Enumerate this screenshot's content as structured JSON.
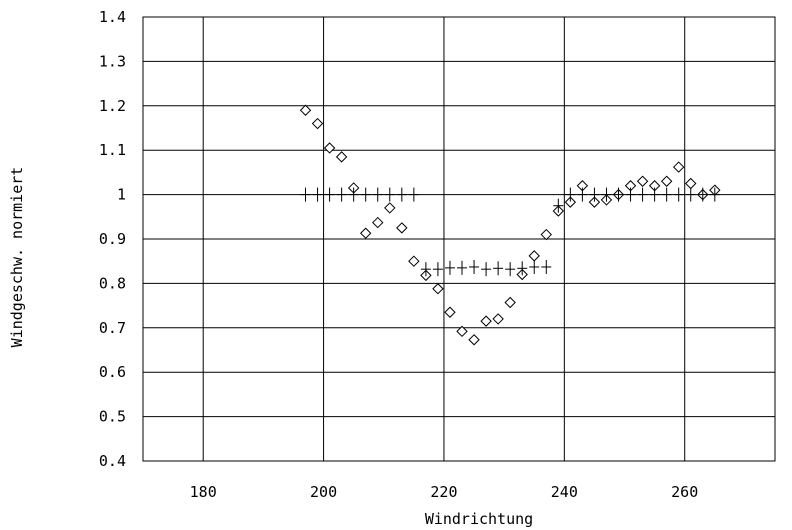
{
  "chart_data": {
    "type": "scatter",
    "title": "",
    "xlabel": "Windrichtung",
    "ylabel": "Windgeschw. normiert",
    "xlim": [
      170,
      275
    ],
    "ylim": [
      0.4,
      1.4
    ],
    "xticks": [
      180,
      200,
      220,
      240,
      260
    ],
    "xtick_labels": [
      "180",
      "200",
      "220",
      "240",
      "260"
    ],
    "yticks": [
      0.4,
      0.5,
      0.6,
      0.7,
      0.8,
      0.9,
      1.0,
      1.1,
      1.2,
      1.3,
      1.4
    ],
    "ytick_labels": [
      "0.4",
      "0.5",
      "0.6",
      "0.7",
      "0.8",
      "0.9",
      "1",
      "1.1",
      "1.2",
      "1.3",
      "1.4"
    ],
    "grid": true,
    "series": [
      {
        "marker": "diamond",
        "points": [
          [
            197,
            1.19
          ],
          [
            199,
            1.16
          ],
          [
            201,
            1.105
          ],
          [
            203,
            1.085
          ],
          [
            205,
            1.015
          ],
          [
            207,
            0.913
          ],
          [
            209,
            0.937
          ],
          [
            211,
            0.97
          ],
          [
            213,
            0.925
          ],
          [
            215,
            0.85
          ],
          [
            217,
            0.818
          ],
          [
            219,
            0.788
          ],
          [
            221,
            0.735
          ],
          [
            223,
            0.692
          ],
          [
            225,
            0.673
          ],
          [
            227,
            0.715
          ],
          [
            229,
            0.72
          ],
          [
            231,
            0.757
          ],
          [
            233,
            0.82
          ],
          [
            235,
            0.862
          ],
          [
            237,
            0.91
          ],
          [
            239,
            0.963
          ],
          [
            241,
            0.983
          ],
          [
            243,
            1.02
          ],
          [
            245,
            0.983
          ],
          [
            247,
            0.988
          ],
          [
            249,
            1.0
          ],
          [
            251,
            1.02
          ],
          [
            253,
            1.03
          ],
          [
            255,
            1.02
          ],
          [
            257,
            1.03
          ],
          [
            259,
            1.062
          ],
          [
            261,
            1.025
          ],
          [
            263,
            1.0
          ],
          [
            265,
            1.01
          ]
        ]
      },
      {
        "marker": "plus",
        "points": [
          [
            197,
            1.0
          ],
          [
            199,
            1.0
          ],
          [
            201,
            1.0
          ],
          [
            203,
            1.0
          ],
          [
            205,
            1.0
          ],
          [
            207,
            1.0
          ],
          [
            209,
            1.0
          ],
          [
            211,
            1.0
          ],
          [
            213,
            1.0
          ],
          [
            215,
            1.0
          ],
          [
            217,
            0.832
          ],
          [
            219,
            0.832
          ],
          [
            221,
            0.835
          ],
          [
            223,
            0.835
          ],
          [
            225,
            0.837
          ],
          [
            227,
            0.832
          ],
          [
            229,
            0.834
          ],
          [
            231,
            0.832
          ],
          [
            233,
            0.834
          ],
          [
            235,
            0.837
          ],
          [
            237,
            0.837
          ],
          [
            239,
            0.975
          ],
          [
            241,
            1.0
          ],
          [
            243,
            1.0
          ],
          [
            245,
            1.0
          ],
          [
            247,
            1.0
          ],
          [
            249,
            1.0
          ],
          [
            251,
            1.0
          ],
          [
            253,
            1.0
          ],
          [
            255,
            1.0
          ],
          [
            257,
            1.0
          ],
          [
            259,
            1.0
          ],
          [
            261,
            1.0
          ],
          [
            263,
            1.0
          ],
          [
            265,
            1.0
          ]
        ]
      }
    ]
  }
}
